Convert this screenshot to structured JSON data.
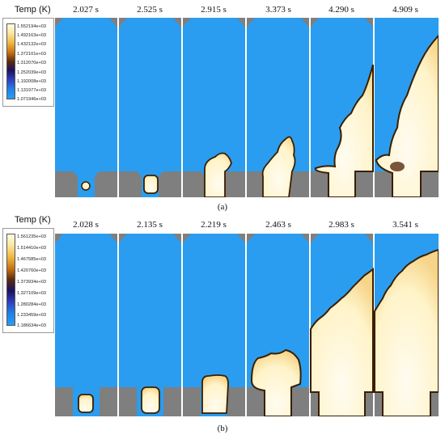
{
  "figure": {
    "panels": [
      {
        "id": "a",
        "caption": "(a)",
        "legend_title": "Temp (K)",
        "legend_values": [
          "1.552194e+03",
          "1.492163e+03",
          "1.432132e+03",
          "1.372101e+03",
          "1.312070e+03",
          "1.252039e+03",
          "1.192008e+03",
          "1.131977e+03",
          "1.071946e+03"
        ],
        "times": [
          "2.027 s",
          "2.525 s",
          "2.915 s",
          "3.373 s",
          "4.290 s",
          "4.909 s"
        ]
      },
      {
        "id": "b",
        "caption": "(b)",
        "legend_title": "Temp (K)",
        "legend_values": [
          "1.561235e+03",
          "1.514410e+03",
          "1.467585e+03",
          "1.420760e+03",
          "1.373934e+03",
          "1.327109e+03",
          "1.280284e+03",
          "1.233459e+03",
          "1.186634e+03"
        ],
        "times": [
          "2.028 s",
          "2.135 s",
          "2.219 s",
          "2.463 s",
          "2.983 s",
          "3.541 s"
        ]
      }
    ],
    "colors": {
      "cold": "#2a9df0",
      "hot": "#fff8d8",
      "front": "#2a1800",
      "wall": "#7f7f7f",
      "colormap": [
        "#fffde6",
        "#fbe7a0",
        "#f0b840",
        "#c87010",
        "#5a2a10",
        "#1a1060",
        "#3040c0",
        "#2080e8",
        "#2a9df0"
      ]
    }
  }
}
